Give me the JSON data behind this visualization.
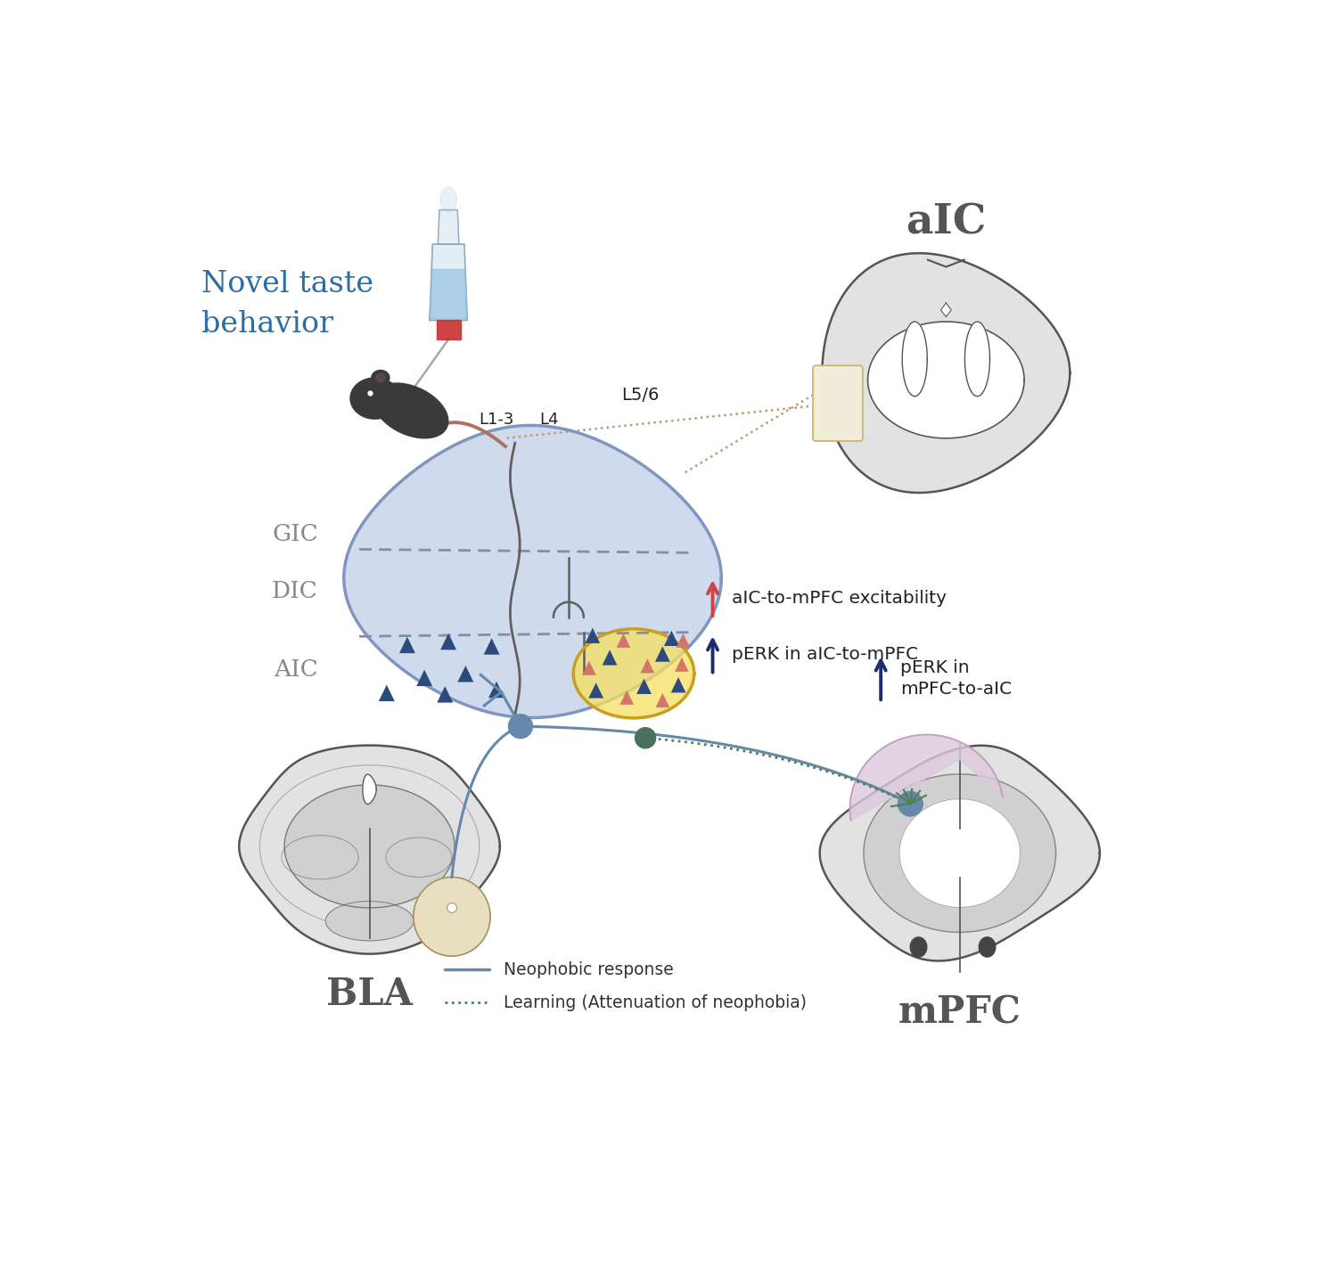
{
  "bg_color": "#ffffff",
  "novel_taste_text": "Novel taste\nbehavior",
  "novel_taste_color": "#2e6da4",
  "aic_label": "aIC",
  "bla_label": "BLA",
  "mpfc_label": "mPFC",
  "gic_label": "GIC",
  "dic_label": "DIC",
  "aic_region_label": "AIC",
  "layer_labels": [
    "L1-3",
    "L4",
    "L5/6"
  ],
  "legend_neophobic": "Neophobic response",
  "legend_learning": "Learning (Attenuation of neophobia)",
  "annotation1_text": "aIC-to-mPFC excitability",
  "annotation2_text": "pERK in aIC-to-mPFC",
  "annotation3_text": "pERK in\nmPFC-to-aIC",
  "dark_blue": "#2c4a7c",
  "salmon": "#d4756a",
  "insular_bg": "#c8d4ea",
  "insular_border": "#8096c0",
  "yellow_fill": "#f5e060",
  "yellow_border": "#c8a020",
  "brain_outer": "#e2e2e2",
  "brain_inner": "#d0d0d0",
  "brain_border": "#555555",
  "brain_white": "#ffffff",
  "mpfc_highlight": "#ddc8dd",
  "bla_fill": "#e8dfc0",
  "neophobic_color": "#6688aa",
  "learning_color": "#508050",
  "dotted_color": "#c09878",
  "red_arrow": "#cc4444",
  "navy_arrow": "#1a2e6e",
  "label_gray": "#888888",
  "region_bold": "#555555"
}
